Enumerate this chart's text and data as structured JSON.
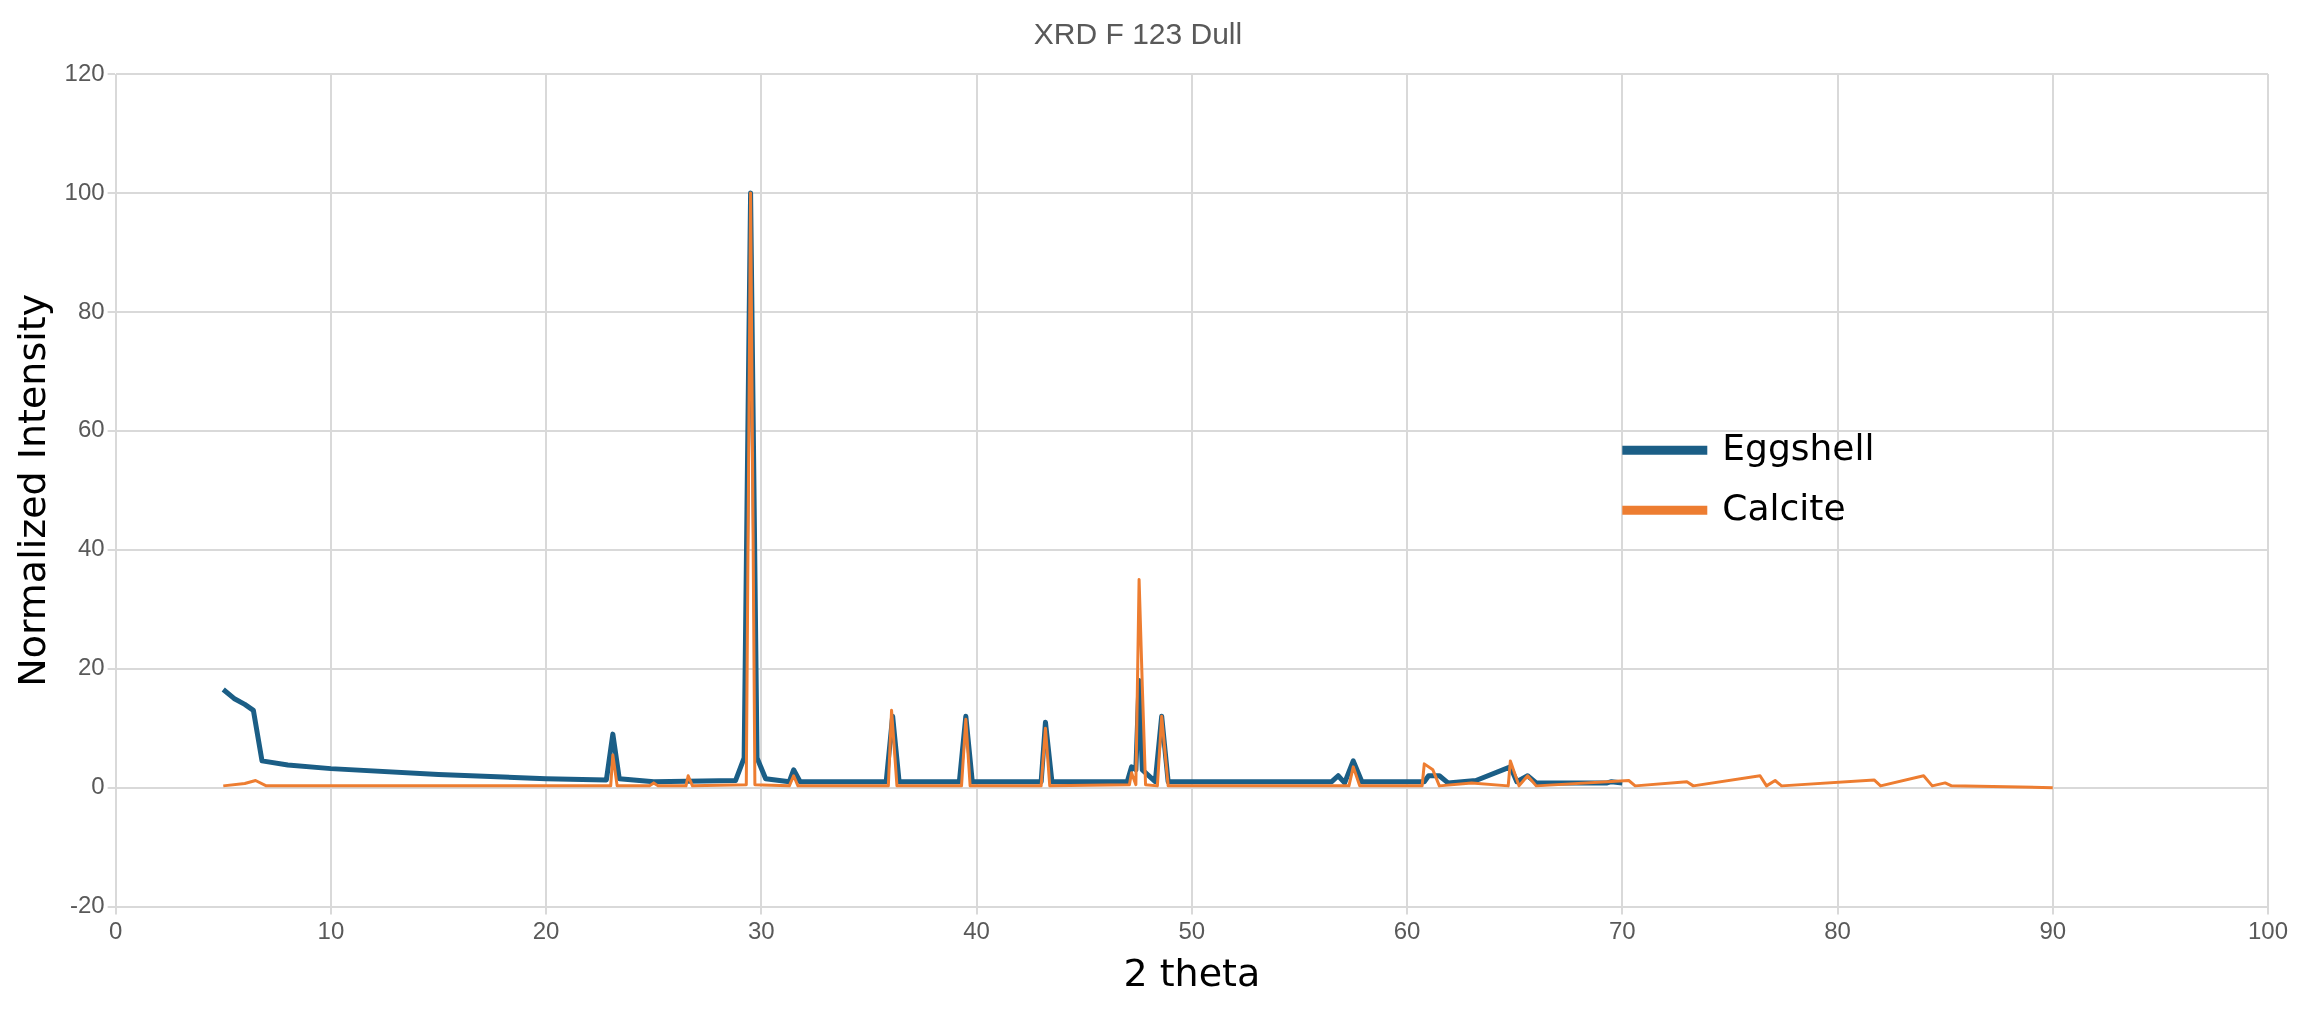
{
  "chart_data": {
    "type": "line",
    "title": "XRD F 123 Dull",
    "xlabel": "2 theta",
    "ylabel": "Normalized Intensity",
    "xlim": [
      0,
      100
    ],
    "xticks": [
      0,
      10,
      20,
      30,
      40,
      50,
      60,
      70,
      80,
      90,
      100
    ],
    "ylim": [
      -20,
      120
    ],
    "yticks": [
      -20,
      0,
      20,
      40,
      60,
      80,
      100,
      120
    ],
    "grid": true,
    "legend": "right",
    "marker": "none",
    "line_style": "solid",
    "series": [
      {
        "name": "Eggshell",
        "color": "#1b5e86",
        "x": [
          5,
          5.5,
          6,
          6.4,
          6.8,
          8,
          10,
          15,
          20,
          22.8,
          23.1,
          23.4,
          25,
          28.8,
          29.2,
          29.5,
          29.8,
          30.2,
          31.3,
          31.5,
          31.8,
          35.8,
          36.1,
          36.4,
          39.2,
          39.5,
          39.8,
          43,
          43.2,
          43.5,
          47,
          47.2,
          47.4,
          47.55,
          47.7,
          48.3,
          48.6,
          48.9,
          56.5,
          56.8,
          57.1,
          57.5,
          57.9,
          60.8,
          61,
          61.5,
          61.9,
          63.2,
          64.8,
          65.1,
          65.6,
          66,
          69.3,
          69.5,
          70
        ],
        "values": [
          16.5,
          15,
          14,
          13,
          4.5,
          3.8,
          3.2,
          2.2,
          1.5,
          1.3,
          9,
          1.5,
          1,
          1.2,
          5,
          100,
          5,
          1.5,
          1,
          3,
          1,
          1,
          12,
          1,
          1,
          12,
          1,
          1,
          11,
          1,
          1,
          3.5,
          3,
          18,
          3,
          1,
          12,
          1,
          1,
          2,
          0.8,
          4.5,
          1,
          1,
          2,
          2,
          0.8,
          1.2,
          3.5,
          1,
          2,
          0.8,
          0.8,
          1,
          0.8
        ]
      },
      {
        "name": "Calcite",
        "color": "#ed7d31",
        "x": [
          5,
          6,
          6.5,
          7,
          23,
          23.1,
          23.3,
          24.8,
          25,
          25.2,
          26.5,
          26.6,
          26.8,
          29.3,
          29.5,
          29.7,
          31.3,
          31.5,
          31.7,
          35.9,
          36.05,
          36.3,
          39.3,
          39.5,
          39.7,
          43,
          43.2,
          43.4,
          47.1,
          47.2,
          47.4,
          47.55,
          47.7,
          47.85,
          48.4,
          48.6,
          48.9,
          57.3,
          57.5,
          57.8,
          60.7,
          60.8,
          61.2,
          61.5,
          63,
          64.7,
          64.8,
          65.2,
          65.6,
          66,
          70.3,
          70.6,
          73,
          73.3,
          76.4,
          76.7,
          77.1,
          77.4,
          81.7,
          82,
          84,
          84.4,
          85,
          85.3,
          90
        ],
        "values": [
          0.3,
          0.7,
          1.2,
          0.3,
          0.3,
          5.5,
          0.3,
          0.3,
          0.8,
          0.3,
          0.3,
          2,
          0.3,
          0.5,
          100,
          0.5,
          0.3,
          2,
          0.3,
          0.3,
          13,
          0.3,
          0.3,
          11.5,
          0.3,
          0.3,
          10,
          0.3,
          0.5,
          2.5,
          0.5,
          35,
          17,
          0.5,
          0.3,
          12,
          0.3,
          0.3,
          3.5,
          0.3,
          0.3,
          4,
          3,
          0.3,
          0.8,
          0.3,
          4.5,
          0.3,
          2,
          0.3,
          1.2,
          0.3,
          1,
          0.3,
          2,
          0.3,
          1.2,
          0.3,
          1.3,
          0.3,
          2,
          0.3,
          0.8,
          0.3,
          0
        ]
      }
    ]
  }
}
